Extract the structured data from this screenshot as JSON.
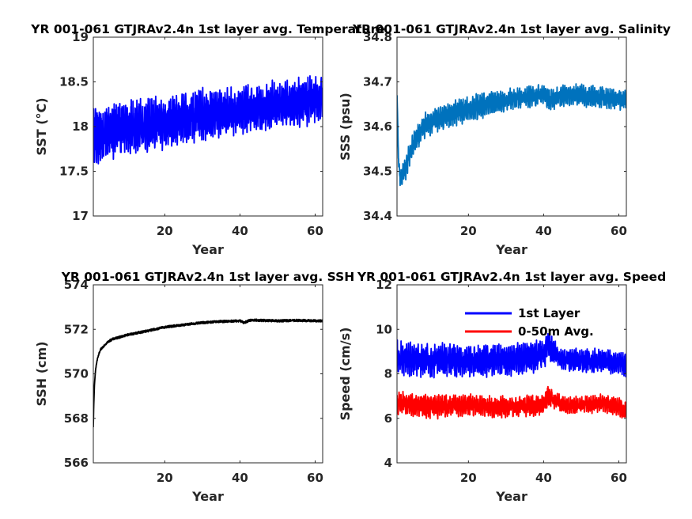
{
  "chart_data": [
    {
      "type": "line",
      "title": "YR 001-061 GTJRAv2.4n 1st layer avg. Temperature",
      "xlabel": "Year",
      "ylabel": "SST (°C)",
      "xlim": [
        1,
        62
      ],
      "ylim": [
        17,
        19
      ],
      "xticks": [
        20,
        40,
        60
      ],
      "yticks": [
        17,
        17.5,
        18,
        18.5,
        19
      ],
      "xtick_labels": [
        "20",
        "40",
        "60"
      ],
      "ytick_labels": [
        "17",
        "17.5",
        "18",
        "18.5",
        "19"
      ],
      "grid": false,
      "legend": null,
      "series": [
        {
          "color": "#0000ff",
          "x": [
            1,
            3,
            6,
            9,
            12,
            15,
            18,
            21,
            24,
            27,
            30,
            33,
            36,
            39,
            42,
            45,
            48,
            51,
            54,
            57,
            60,
            62
          ],
          "mean": [
            17.9,
            17.92,
            17.95,
            17.97,
            18.0,
            18.02,
            18.03,
            18.05,
            18.08,
            18.1,
            18.13,
            18.15,
            18.17,
            18.18,
            18.2,
            18.22,
            18.23,
            18.25,
            18.27,
            18.28,
            18.3,
            18.32
          ],
          "amp": [
            0.38,
            0.34,
            0.33,
            0.32,
            0.32,
            0.31,
            0.31,
            0.3,
            0.3,
            0.3,
            0.3,
            0.3,
            0.29,
            0.29,
            0.29,
            0.28,
            0.28,
            0.28,
            0.28,
            0.28,
            0.28,
            0.25
          ]
        }
      ]
    },
    {
      "type": "line",
      "title": "YR 001-061 GTJRAv2.4n 1st layer avg. Salinity",
      "xlabel": "Year",
      "ylabel": "SSS (psu)",
      "xlim": [
        1,
        62
      ],
      "ylim": [
        34.4,
        34.8
      ],
      "xticks": [
        20,
        40,
        60
      ],
      "yticks": [
        34.4,
        34.5,
        34.6,
        34.7,
        34.8
      ],
      "xtick_labels": [
        "20",
        "40",
        "60"
      ],
      "ytick_labels": [
        "34.4",
        "34.5",
        "34.6",
        "34.7",
        "34.8"
      ],
      "grid": false,
      "legend": null,
      "series": [
        {
          "color": "#0072bd",
          "x": [
            1,
            1.5,
            2,
            3,
            4,
            6,
            8,
            10,
            13,
            16,
            20,
            25,
            30,
            35,
            40,
            42,
            45,
            50,
            55,
            62
          ],
          "mean": [
            34.67,
            34.5,
            34.48,
            34.5,
            34.53,
            34.57,
            34.6,
            34.61,
            34.62,
            34.63,
            34.64,
            34.65,
            34.66,
            34.665,
            34.67,
            34.66,
            34.67,
            34.67,
            34.665,
            34.66
          ],
          "amp": [
            0.0,
            0.02,
            0.03,
            0.03,
            0.03,
            0.03,
            0.03,
            0.03,
            0.03,
            0.03,
            0.03,
            0.03,
            0.025,
            0.025,
            0.025,
            0.025,
            0.025,
            0.025,
            0.025,
            0.025
          ]
        }
      ]
    },
    {
      "type": "line",
      "title": "YR 001-061 GTJRAv2.4n 1st layer avg. SSH",
      "xlabel": "Year",
      "ylabel": "SSH (cm)",
      "xlim": [
        1,
        62
      ],
      "ylim": [
        566,
        574
      ],
      "xticks": [
        20,
        40,
        60
      ],
      "yticks": [
        566,
        568,
        570,
        572,
        574
      ],
      "xtick_labels": [
        "20",
        "40",
        "60"
      ],
      "ytick_labels": [
        "566",
        "568",
        "570",
        "572",
        "574"
      ],
      "grid": false,
      "legend": null,
      "series": [
        {
          "color": "#000000",
          "x": [
            1,
            1.1,
            1.3,
            1.6,
            2,
            2.5,
            3,
            4,
            5,
            6,
            8,
            10,
            13,
            16,
            20,
            25,
            30,
            35,
            40,
            41,
            43,
            46,
            50,
            55,
            62
          ],
          "mean": [
            567.6,
            568.5,
            569.5,
            570.2,
            570.6,
            570.9,
            571.1,
            571.3,
            571.45,
            571.55,
            571.65,
            571.75,
            571.85,
            571.95,
            572.1,
            572.2,
            572.3,
            572.35,
            572.38,
            572.3,
            572.42,
            572.4,
            572.38,
            572.4,
            572.38
          ],
          "amp": [
            0,
            0,
            0,
            0.02,
            0.03,
            0.04,
            0.05,
            0.05,
            0.05,
            0.05,
            0.05,
            0.05,
            0.05,
            0.05,
            0.05,
            0.05,
            0.05,
            0.05,
            0.05,
            0.05,
            0.05,
            0.05,
            0.05,
            0.05,
            0.05
          ]
        }
      ]
    },
    {
      "type": "line",
      "title": "YR 001-061 GTJRAv2.4n 1st layer avg. Speed",
      "xlabel": "Year",
      "ylabel": "Speed (cm/s)",
      "xlim": [
        1,
        62
      ],
      "ylim": [
        4,
        12
      ],
      "xticks": [
        20,
        40,
        60
      ],
      "yticks": [
        4,
        6,
        8,
        10,
        12
      ],
      "xtick_labels": [
        "20",
        "40",
        "60"
      ],
      "ytick_labels": [
        "4",
        "6",
        "8",
        "10",
        "12"
      ],
      "grid": false,
      "legend": "top-right",
      "series": [
        {
          "name": "1st Layer",
          "color": "#0000ff",
          "x": [
            1,
            10,
            20,
            30,
            40,
            41,
            45,
            50,
            55,
            62
          ],
          "mean": [
            8.7,
            8.6,
            8.6,
            8.6,
            8.8,
            9.3,
            8.6,
            8.6,
            8.6,
            8.4
          ],
          "amp": [
            0.8,
            0.8,
            0.75,
            0.75,
            0.75,
            0.7,
            0.5,
            0.55,
            0.55,
            0.55
          ]
        },
        {
          "name": "0-50m Avg.",
          "color": "#ff0000",
          "x": [
            1,
            10,
            20,
            30,
            40,
            41,
            45,
            50,
            55,
            62
          ],
          "mean": [
            6.7,
            6.5,
            6.6,
            6.5,
            6.6,
            7.0,
            6.6,
            6.6,
            6.7,
            6.4
          ],
          "amp": [
            0.55,
            0.55,
            0.5,
            0.5,
            0.5,
            0.5,
            0.4,
            0.4,
            0.45,
            0.45
          ]
        }
      ]
    }
  ]
}
